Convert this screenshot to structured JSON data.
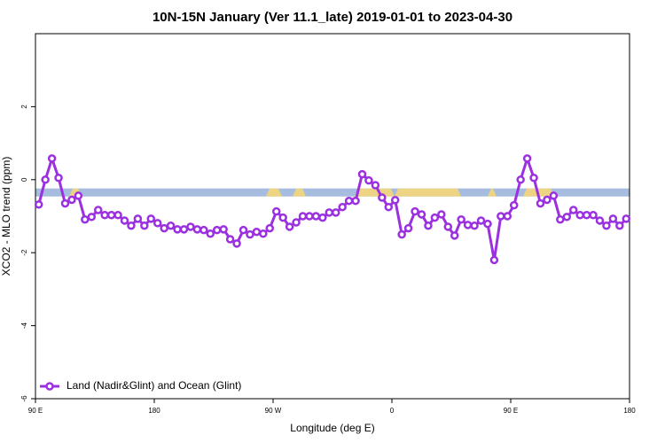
{
  "chart_data": {
    "type": "line",
    "title": "10N-15N January (Ver 11.1_late)   2019-01-01 to 2023-04-30",
    "x_label": "Longitude (deg E)",
    "y_label": "XCO2 - MLO trend (ppm)",
    "xlim": [
      90,
      540
    ],
    "ylim": [
      -6,
      4
    ],
    "xticks": [
      {
        "value": 90,
        "label": "90 E"
      },
      {
        "value": 180,
        "label": "180"
      },
      {
        "value": 270,
        "label": "90 W"
      },
      {
        "value": 360,
        "label": "0"
      },
      {
        "value": 450,
        "label": "90 E"
      },
      {
        "value": 540,
        "label": "180"
      }
    ],
    "yticks": [
      -6,
      -4,
      -2,
      0,
      2
    ],
    "band": {
      "range": [
        -0.46,
        -0.24
      ],
      "color": "#a6bddf"
    },
    "legend": "bottom-left",
    "x": [
      92.5,
      97.5,
      102.5,
      107.5,
      112.5,
      117.5,
      122.5,
      127.5,
      132.5,
      137.5,
      142.5,
      147.5,
      152.5,
      157.5,
      162.5,
      167.5,
      172.5,
      177.5,
      182.5,
      187.5,
      192.5,
      197.5,
      202.5,
      207.5,
      212.5,
      217.5,
      222.5,
      227.5,
      232.5,
      237.5,
      242.5,
      247.5,
      252.5,
      257.5,
      262.5,
      267.5,
      272.5,
      277.5,
      282.5,
      287.5,
      292.5,
      297.5,
      302.5,
      307.5,
      312.5,
      317.5,
      322.5,
      327.5,
      332.5,
      337.5,
      342.5,
      347.5,
      352.5,
      357.5,
      362.5,
      367.5,
      372.5,
      377.5,
      382.5,
      387.5,
      392.5,
      397.5,
      402.5,
      407.5,
      412.5,
      417.5,
      422.5,
      427.5,
      432.5,
      437.5,
      442.5,
      447.5,
      452.5,
      457.5,
      462.5,
      467.5,
      472.5,
      477.5,
      482.5,
      487.5,
      492.5,
      497.5,
      502.5,
      507.5,
      512.5,
      517.5,
      522.5,
      527.5,
      532.5,
      537.5
    ],
    "series": [
      {
        "name": "Land (Nadir&Glint) and Ocean (Glint)",
        "color": "#9b30e0",
        "values": [
          -0.68,
          0,
          0.58,
          0.05,
          -0.65,
          -0.55,
          -0.44,
          -1.09,
          -1.02,
          -0.83,
          -0.97,
          -0.97,
          -0.97,
          -1.12,
          -1.26,
          -1.07,
          -1.26,
          -1.07,
          -1.19,
          -1.33,
          -1.26,
          -1.36,
          -1.36,
          -1.29,
          -1.36,
          -1.38,
          -1.48,
          -1.38,
          -1.36,
          -1.63,
          -1.75,
          -1.38,
          -1.5,
          -1.43,
          -1.48,
          -1.33,
          -0.87,
          -1.04,
          -1.29,
          -1.17,
          -1.0,
          -1.0,
          -1.0,
          -1.04,
          -0.9,
          -0.9,
          -0.75,
          -0.58,
          -0.58,
          0.15,
          -0.02,
          -0.15,
          -0.49,
          -0.75,
          -0.56,
          -1.5,
          -1.33,
          -0.87,
          -0.95,
          -1.26,
          -1.04,
          -0.95,
          -1.29,
          -1.53,
          -1.09,
          -1.24,
          -1.26,
          -1.12,
          -1.21,
          -2.2,
          -1.0,
          -1.0,
          -0.7,
          0,
          0.58,
          0.05,
          -0.65,
          -0.55,
          -0.44,
          -1.09,
          -1.02,
          -0.83,
          -0.97,
          -0.97,
          -0.97,
          -1.12,
          -1.26,
          -1.07,
          -1.26,
          -1.07
        ]
      }
    ]
  }
}
